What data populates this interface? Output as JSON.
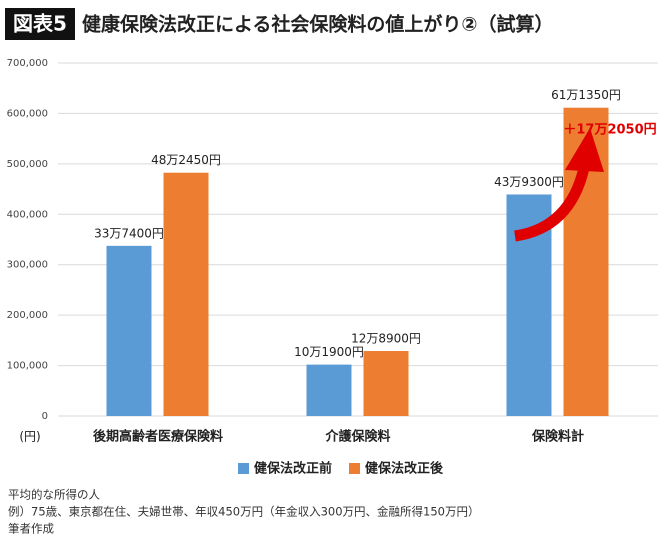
{
  "chart_data": {
    "type": "bar",
    "title_badge": "図表5",
    "title": "健康保険法改正による社会保険料の値上がり②（試算）",
    "y_unit": "(円)",
    "categories": [
      "後期高齢者医療保険料",
      "介護保険料",
      "保険料計"
    ],
    "series": [
      {
        "name": "健保法改正前",
        "color": "#5b9bd5",
        "values": [
          337400,
          101900,
          439300
        ],
        "value_labels": [
          "33万7400円",
          "10万1900円",
          "43万9300円"
        ]
      },
      {
        "name": "健保法改正後",
        "color": "#ed7d31",
        "values": [
          482450,
          128900,
          611350
        ],
        "value_labels": [
          "48万2450円",
          "12万8900円",
          "61万1350円"
        ]
      }
    ],
    "annotation": "＋17万2050円",
    "ylim": [
      0,
      700000
    ],
    "yticks": [
      0,
      {
        "value": 100000,
        "label": "100,000"
      },
      {
        "value": 200000,
        "label": "200,000"
      },
      {
        "value": 300000,
        "label": "300,000"
      },
      {
        "value": 400000,
        "label": "400,000"
      },
      {
        "value": 500000,
        "label": "500,000"
      },
      {
        "value": 600000,
        "label": "600,000"
      },
      {
        "value": 700000,
        "label": "700,000"
      }
    ],
    "grid": true,
    "notes": [
      "平均的な所得の人",
      "例）75歳、東京都在住、夫婦世帯、年収450万円（年金収入300万円、金融所得150万円）",
      "筆者作成"
    ]
  }
}
